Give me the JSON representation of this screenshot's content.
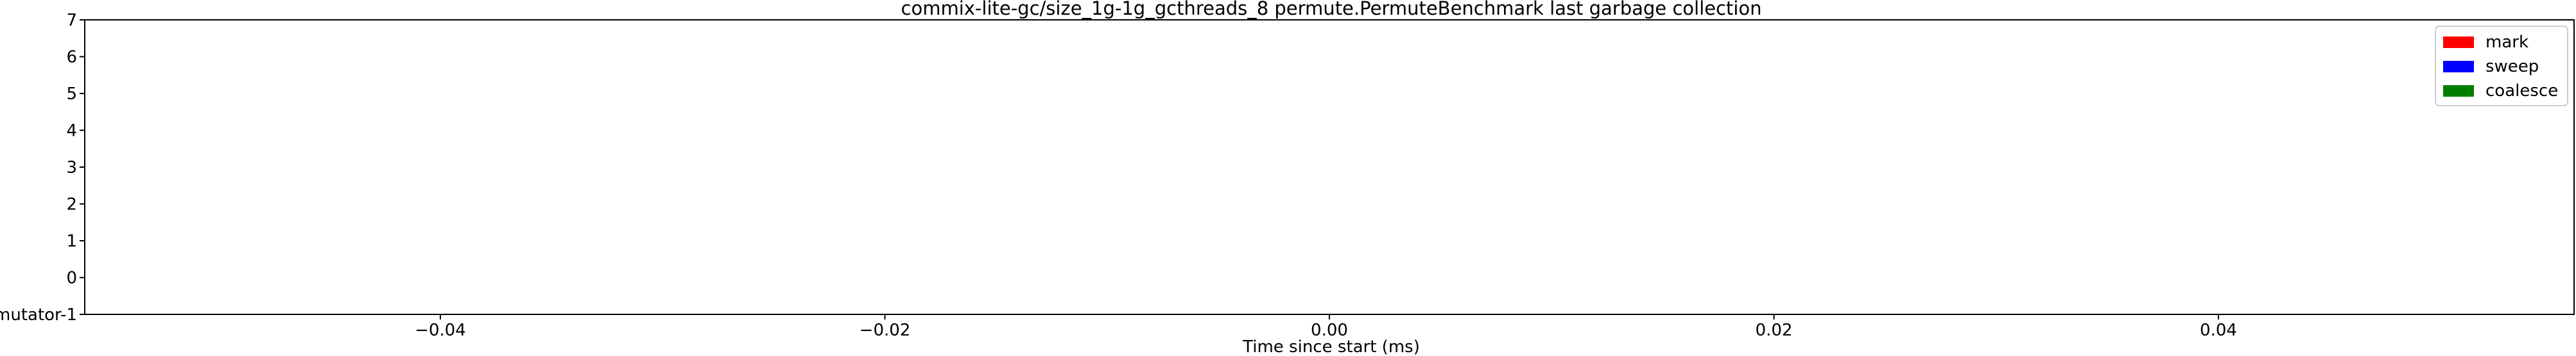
{
  "chart_data": {
    "type": "bar",
    "title": "commix-lite-gc/size_1g-1g_gcthreads_8 permute.PermuteBenchmark last garbage collection",
    "xlabel": "Time since start (ms)",
    "ylabel": "",
    "xlim": [
      -0.056,
      0.056
    ],
    "ylim": [
      -1,
      7
    ],
    "x_ticks": [
      -0.04,
      -0.02,
      0.0,
      0.02,
      0.04
    ],
    "x_tick_labels": [
      "−0.04",
      "−0.02",
      "0.00",
      "0.02",
      "0.04"
    ],
    "y_ticks": [
      -1,
      0,
      1,
      2,
      3,
      4,
      5,
      6,
      7
    ],
    "y_tick_labels": [
      "mutator-1",
      "0",
      "1",
      "2",
      "3",
      "4",
      "5",
      "6",
      "7"
    ],
    "legend_position": "top-right",
    "grid": false,
    "series": [
      {
        "name": "mark",
        "color": "#ff0000",
        "values": []
      },
      {
        "name": "sweep",
        "color": "#0000ff",
        "values": []
      },
      {
        "name": "coalesce",
        "color": "#008000",
        "values": []
      }
    ]
  }
}
